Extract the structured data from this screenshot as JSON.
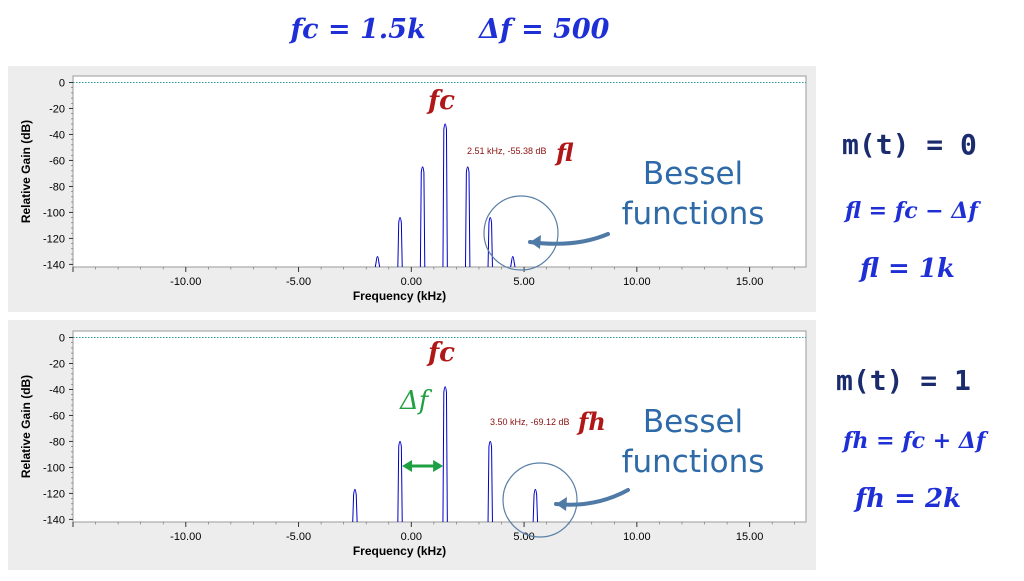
{
  "header": {
    "fc_eq": "fc = 1.5k",
    "df_eq": "Δf = 500"
  },
  "colors": {
    "trace": "#0000c8",
    "refline": "#2a9a9a",
    "carrier_label": "#b01818",
    "bessel_text": "#2e6aa8",
    "delta_arrow": "#1fa043",
    "equation": "#1f2fd6"
  },
  "chart_data": [
    {
      "type": "line",
      "xlabel": "Frequency (kHz)",
      "ylabel": "Relative Gain (dB)",
      "xlim": [
        -15,
        17.5
      ],
      "ylim": [
        -142,
        5
      ],
      "xticks": [
        "-10.00",
        "-5.00",
        "0.00",
        "5.00",
        "10.00",
        "15.00"
      ],
      "xtick_values": [
        -10,
        -5,
        0,
        5,
        10,
        15
      ],
      "yticks": [
        "0",
        "-20",
        "-40",
        "-60",
        "-80",
        "-100",
        "-120",
        "-140"
      ],
      "ytick_values": [
        0,
        -20,
        -40,
        -60,
        -80,
        -100,
        -120,
        -140
      ],
      "reference_line": 0,
      "peaks": [
        {
          "x": -1.5,
          "y": -132
        },
        {
          "x": -0.5,
          "y": -102
        },
        {
          "x": 0.5,
          "y": -63
        },
        {
          "x": 1.5,
          "y": -30
        },
        {
          "x": 2.5,
          "y": -63
        },
        {
          "x": 3.5,
          "y": -102
        },
        {
          "x": 4.5,
          "y": -132
        }
      ],
      "cursor_readout": "2.51 kHz, -55.38 dB",
      "annotation_carrier": "fc",
      "annotation_freq": "fl",
      "bessel_label": "Bessel functions",
      "side": {
        "mt": "m(t) = 0",
        "eq": "fl = fc − Δf",
        "result": "fl = 1k"
      }
    },
    {
      "type": "line",
      "xlabel": "Frequency (kHz)",
      "ylabel": "Relative Gain (dB)",
      "xlim": [
        -15,
        17.5
      ],
      "ylim": [
        -142,
        5
      ],
      "xticks": [
        "-10.00",
        "-5.00",
        "0.00",
        "5.00",
        "10.00",
        "15.00"
      ],
      "xtick_values": [
        -10,
        -5,
        0,
        5,
        10,
        15
      ],
      "yticks": [
        "0",
        "-20",
        "-40",
        "-60",
        "-80",
        "-100",
        "-120",
        "-140"
      ],
      "ytick_values": [
        0,
        -20,
        -40,
        -60,
        -80,
        -100,
        -120,
        -140
      ],
      "reference_line": 0,
      "peaks": [
        {
          "x": -2.5,
          "y": -115
        },
        {
          "x": -0.5,
          "y": -78
        },
        {
          "x": 1.5,
          "y": -36
        },
        {
          "x": 3.5,
          "y": -78
        },
        {
          "x": 5.5,
          "y": -115
        }
      ],
      "cursor_readout": "3.50 kHz, -69.12 dB",
      "annotation_carrier": "fc",
      "annotation_freq": "fh",
      "annotation_delta": "Δf",
      "bessel_label": "Bessel functions",
      "side": {
        "mt": "m(t) = 1",
        "eq": "fh = fc + Δf",
        "result": "fh = 2k"
      }
    }
  ]
}
